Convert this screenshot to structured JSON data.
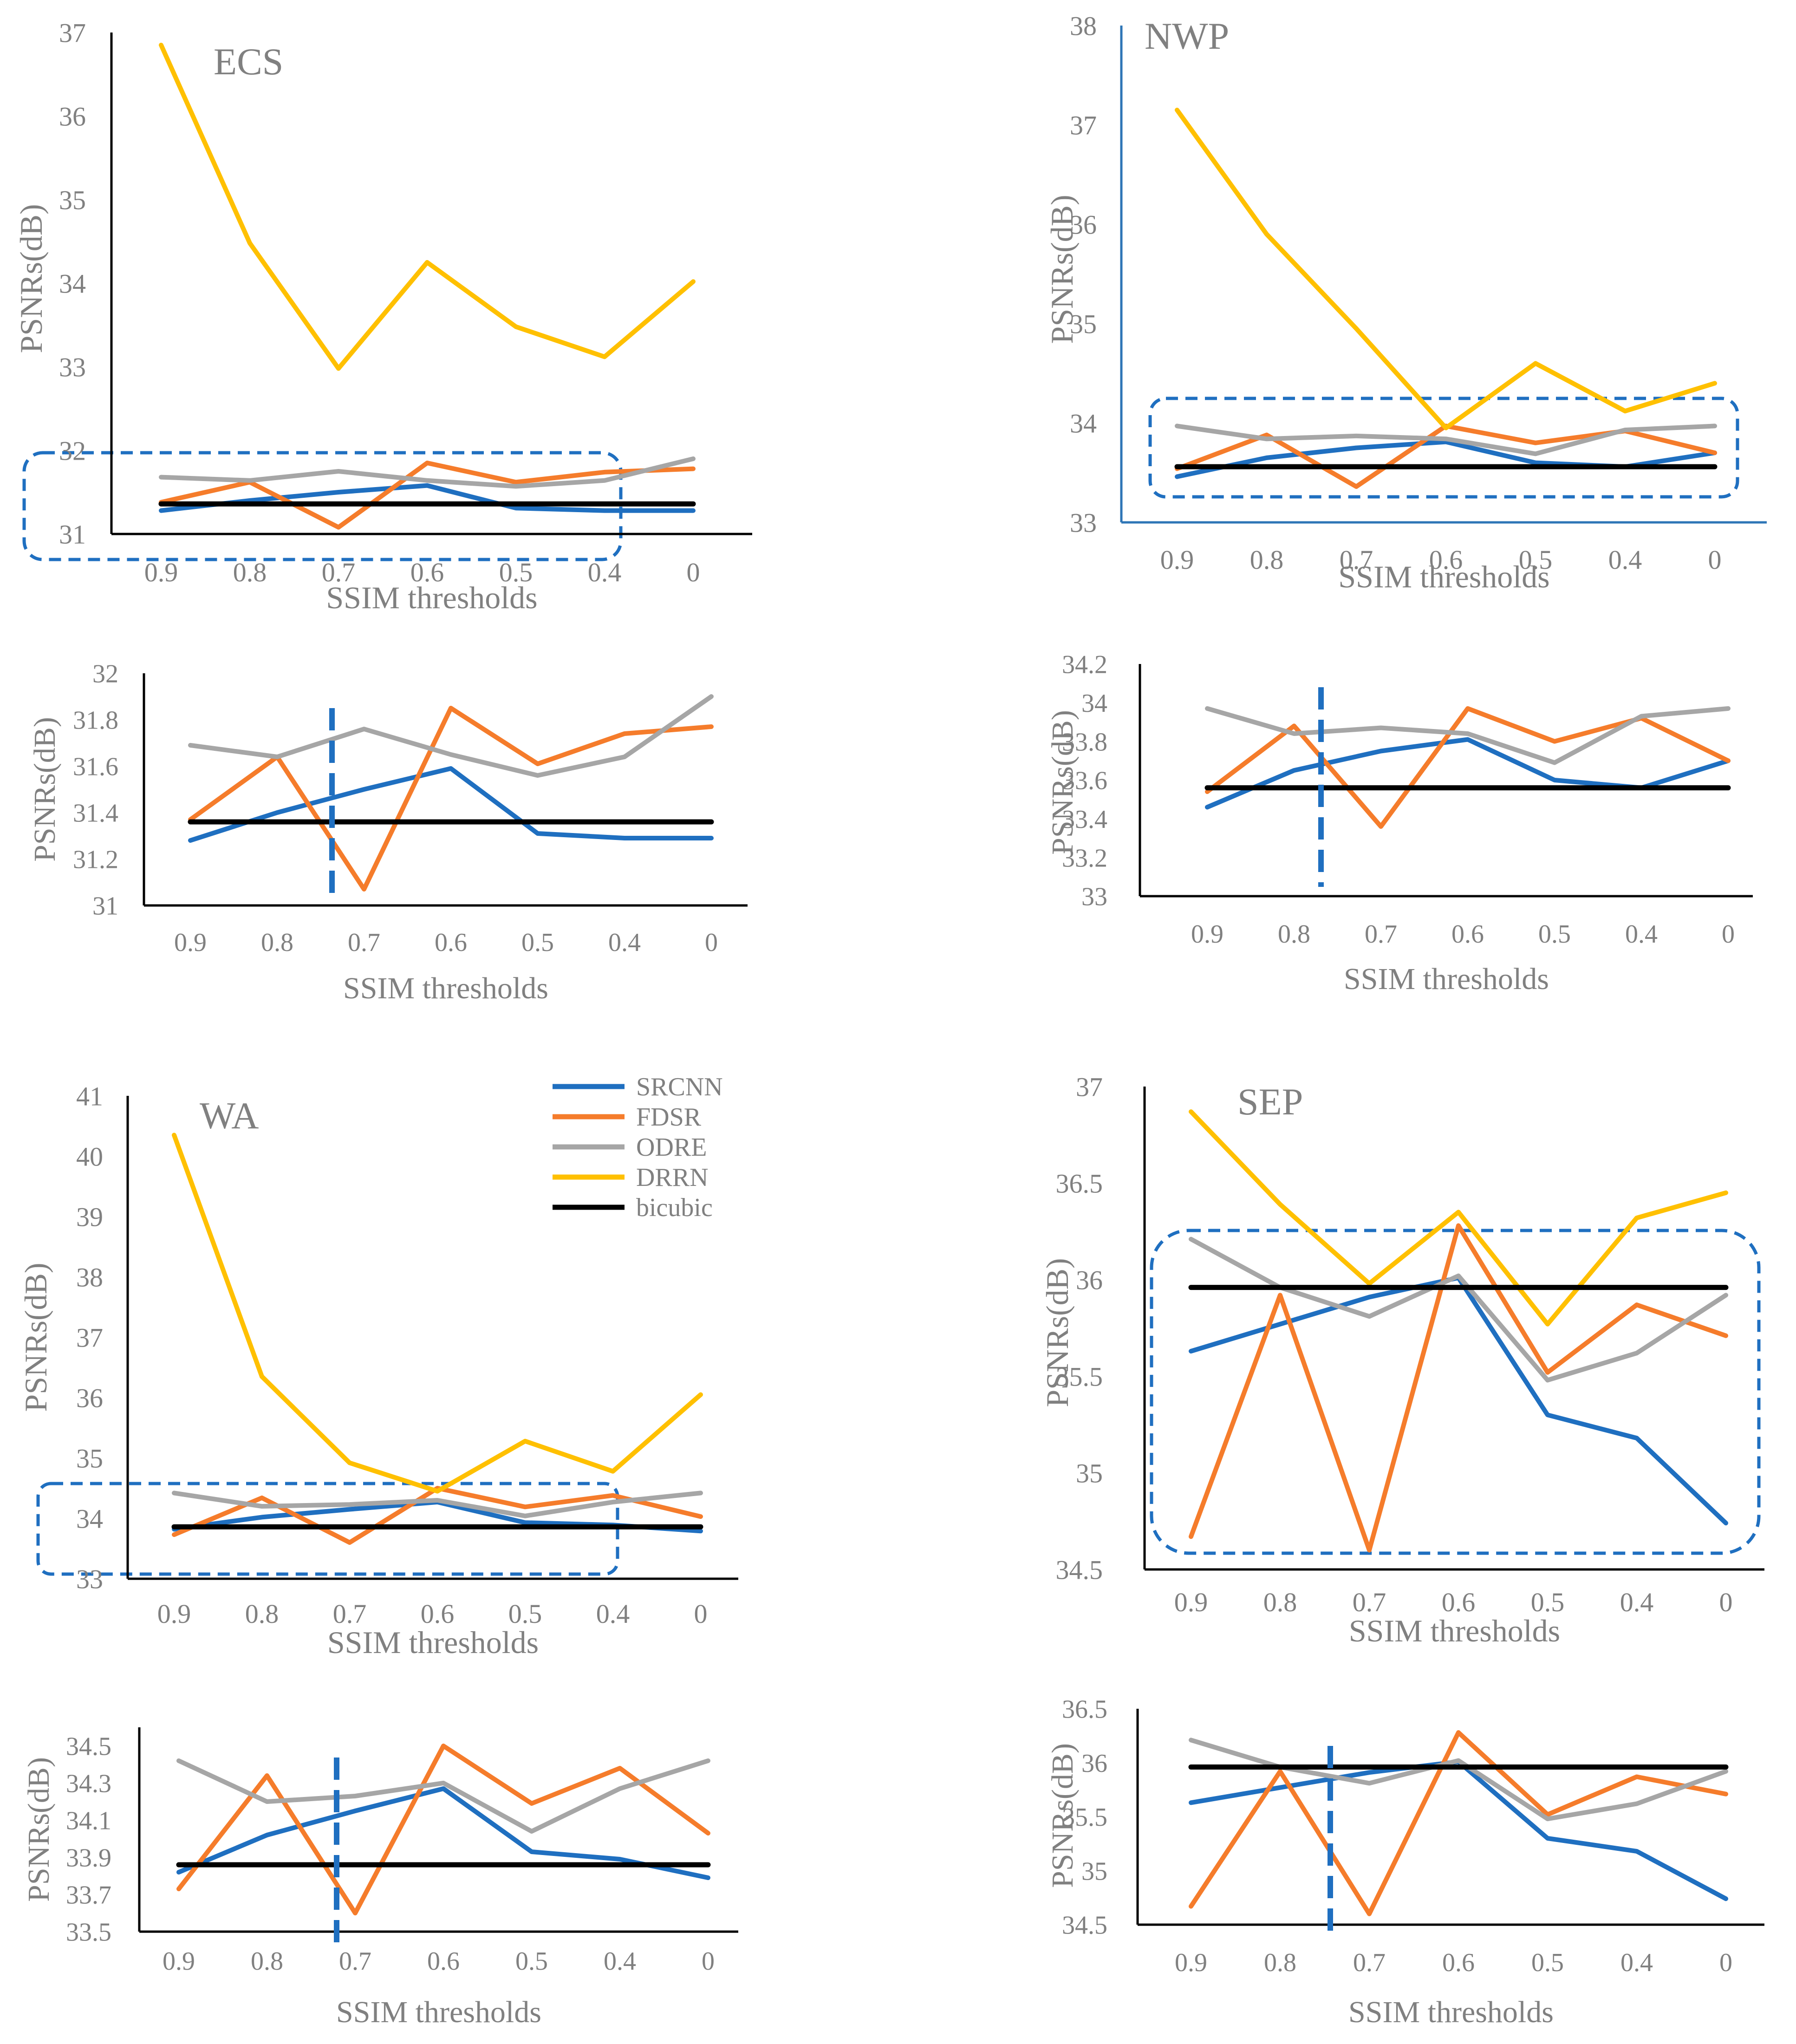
{
  "colors": {
    "SRCNN": "#1f6fc0",
    "FDSR": "#f57c2b",
    "ODRE": "#a6a6a6",
    "DRRN": "#ffc000",
    "bicubic": "#000000",
    "text": "#808080",
    "axis": "#000000",
    "axis_nwp": "#2e75b6",
    "marker": "#1f6fc0"
  },
  "legend": {
    "items": [
      {
        "name": "SRCNN",
        "color": "#1f6fc0"
      },
      {
        "name": "FDSR",
        "color": "#f57c2b"
      },
      {
        "name": "ODRE",
        "color": "#a6a6a6"
      },
      {
        "name": "DRRN",
        "color": "#ffc000"
      },
      {
        "name": "bicubic",
        "color": "#000000"
      }
    ]
  },
  "chart_data": [
    {
      "id": "ecs-main",
      "type": "line",
      "title": "ECS",
      "xlabel": "SSIM thresholds",
      "ylabel": "PSNRs(dB)",
      "categories": [
        "0.9",
        "0.8",
        "0.7",
        "0.6",
        "0.5",
        "0.4",
        "0"
      ],
      "ylim": [
        31,
        37
      ],
      "yticks": [
        "31",
        "32",
        "33",
        "34",
        "35",
        "36",
        "37"
      ],
      "series": [
        {
          "name": "SRCNN",
          "values": [
            31.28,
            31.4,
            31.5,
            31.58,
            31.31,
            31.28,
            31.28
          ]
        },
        {
          "name": "FDSR",
          "values": [
            31.38,
            31.62,
            31.08,
            31.85,
            31.62,
            31.74,
            31.78
          ]
        },
        {
          "name": "ODRE",
          "values": [
            31.68,
            31.64,
            31.75,
            31.64,
            31.57,
            31.64,
            31.9
          ]
        },
        {
          "name": "DRRN",
          "values": [
            36.85,
            34.48,
            32.98,
            34.25,
            33.48,
            33.12,
            34.02
          ]
        },
        {
          "name": "bicubic",
          "values": [
            31.36,
            31.36,
            31.36,
            31.36,
            31.36,
            31.36,
            31.36
          ]
        }
      ]
    },
    {
      "id": "ecs-zoom",
      "type": "line",
      "title": "",
      "xlabel": "SSIM thresholds",
      "ylabel": "PSNRs(dB)",
      "categories": [
        "0.9",
        "0.8",
        "0.7",
        "0.6",
        "0.5",
        "0.4",
        "0"
      ],
      "ylim": [
        31,
        32
      ],
      "yticks": [
        "31",
        "31.2",
        "31.4",
        "31.6",
        "31.8",
        "32"
      ],
      "series": [
        {
          "name": "SRCNN",
          "values": [
            31.28,
            31.4,
            31.5,
            31.59,
            31.31,
            31.29,
            31.29
          ]
        },
        {
          "name": "FDSR",
          "values": [
            31.37,
            31.64,
            31.07,
            31.85,
            31.61,
            31.74,
            31.77
          ]
        },
        {
          "name": "ODRE",
          "values": [
            31.69,
            31.64,
            31.76,
            31.65,
            31.56,
            31.64,
            31.9
          ]
        },
        {
          "name": "bicubic",
          "values": [
            31.36,
            31.36,
            31.36,
            31.36,
            31.36,
            31.36,
            31.36
          ]
        }
      ]
    },
    {
      "id": "nwp-main",
      "type": "line",
      "title": "NWP",
      "xlabel": "SSIM thresholds",
      "ylabel": "PSNRs(dB)",
      "categories": [
        "0.9",
        "0.8",
        "0.7",
        "0.6",
        "0.5",
        "0.4",
        "0"
      ],
      "ylim": [
        33,
        38
      ],
      "yticks": [
        "33",
        "34",
        "35",
        "36",
        "37",
        "38"
      ],
      "series": [
        {
          "name": "SRCNN",
          "values": [
            33.46,
            33.65,
            33.75,
            33.81,
            33.6,
            33.56,
            33.7
          ]
        },
        {
          "name": "FDSR",
          "values": [
            33.54,
            33.88,
            33.36,
            33.97,
            33.8,
            33.92,
            33.7
          ]
        },
        {
          "name": "ODRE",
          "values": [
            33.97,
            33.84,
            33.87,
            33.84,
            33.69,
            33.93,
            33.97
          ]
        },
        {
          "name": "DRRN",
          "values": [
            37.15,
            35.9,
            34.95,
            33.95,
            34.6,
            34.12,
            34.4
          ]
        },
        {
          "name": "bicubic",
          "values": [
            33.56,
            33.56,
            33.56,
            33.56,
            33.56,
            33.56,
            33.56
          ]
        }
      ]
    },
    {
      "id": "nwp-zoom",
      "type": "line",
      "title": "",
      "xlabel": "SSIM thresholds",
      "ylabel": "PSNRs(dB)",
      "categories": [
        "0.9",
        "0.8",
        "0.7",
        "0.6",
        "0.5",
        "0.4",
        "0"
      ],
      "ylim": [
        33,
        34.2
      ],
      "yticks": [
        "33",
        "33.2",
        "33.4",
        "33.6",
        "33.8",
        "34",
        "34.2"
      ],
      "series": [
        {
          "name": "SRCNN",
          "values": [
            33.46,
            33.65,
            33.75,
            33.81,
            33.6,
            33.56,
            33.7
          ]
        },
        {
          "name": "FDSR",
          "values": [
            33.54,
            33.88,
            33.36,
            33.97,
            33.8,
            33.92,
            33.7
          ]
        },
        {
          "name": "ODRE",
          "values": [
            33.97,
            33.84,
            33.87,
            33.84,
            33.69,
            33.93,
            33.97
          ]
        },
        {
          "name": "bicubic",
          "values": [
            33.56,
            33.56,
            33.56,
            33.56,
            33.56,
            33.56,
            33.56
          ]
        }
      ]
    },
    {
      "id": "wa-main",
      "type": "line",
      "title": "WA",
      "xlabel": "SSIM thresholds",
      "ylabel": "PSNRs(dB)",
      "categories": [
        "0.9",
        "0.8",
        "0.7",
        "0.6",
        "0.5",
        "0.4",
        "0"
      ],
      "ylim": [
        33,
        41
      ],
      "yticks": [
        "33",
        "34",
        "35",
        "36",
        "37",
        "38",
        "39",
        "40",
        "41"
      ],
      "series": [
        {
          "name": "SRCNN",
          "values": [
            33.82,
            34.02,
            34.15,
            34.27,
            33.93,
            33.89,
            33.79
          ]
        },
        {
          "name": "FDSR",
          "values": [
            33.73,
            34.34,
            33.6,
            34.5,
            34.19,
            34.38,
            34.03
          ]
        },
        {
          "name": "ODRE",
          "values": [
            34.42,
            34.2,
            34.23,
            34.3,
            34.04,
            34.27,
            34.42
          ]
        },
        {
          "name": "DRRN",
          "values": [
            40.35,
            36.35,
            34.92,
            34.45,
            35.28,
            34.78,
            36.05
          ]
        },
        {
          "name": "bicubic",
          "values": [
            33.86,
            33.86,
            33.86,
            33.86,
            33.86,
            33.86,
            33.86
          ]
        }
      ]
    },
    {
      "id": "wa-zoom",
      "type": "line",
      "title": "",
      "xlabel": "SSIM thresholds",
      "ylabel": "PSNRs(dB)",
      "categories": [
        "0.9",
        "0.8",
        "0.7",
        "0.6",
        "0.5",
        "0.4",
        "0"
      ],
      "ylim": [
        33.5,
        34.6
      ],
      "yticks": [
        "33.5",
        "33.7",
        "33.9",
        "34.1",
        "34.3",
        "34.5"
      ],
      "series": [
        {
          "name": "SRCNN",
          "values": [
            33.82,
            34.02,
            34.15,
            34.27,
            33.93,
            33.89,
            33.79
          ]
        },
        {
          "name": "FDSR",
          "values": [
            33.73,
            34.34,
            33.6,
            34.5,
            34.19,
            34.38,
            34.03
          ]
        },
        {
          "name": "ODRE",
          "values": [
            34.42,
            34.2,
            34.23,
            34.3,
            34.04,
            34.27,
            34.42
          ]
        },
        {
          "name": "bicubic",
          "values": [
            33.86,
            33.86,
            33.86,
            33.86,
            33.86,
            33.86,
            33.86
          ]
        }
      ]
    },
    {
      "id": "sep-main",
      "type": "line",
      "title": "SEP",
      "xlabel": "SSIM thresholds",
      "ylabel": "PSNRs(dB)",
      "categories": [
        "0.9",
        "0.8",
        "0.7",
        "0.6",
        "0.5",
        "0.4",
        "0"
      ],
      "ylim": [
        34.5,
        37
      ],
      "yticks": [
        "34.5",
        "35",
        "35.5",
        "36",
        "36.5",
        "37"
      ],
      "series": [
        {
          "name": "SRCNN",
          "values": [
            35.63,
            35.77,
            35.91,
            36.01,
            35.3,
            35.18,
            34.74
          ]
        },
        {
          "name": "FDSR",
          "values": [
            34.67,
            35.92,
            34.6,
            36.28,
            35.52,
            35.87,
            35.71
          ]
        },
        {
          "name": "ODRE",
          "values": [
            36.21,
            35.96,
            35.81,
            36.02,
            35.48,
            35.62,
            35.92
          ]
        },
        {
          "name": "DRRN",
          "values": [
            36.87,
            36.39,
            35.98,
            36.35,
            35.77,
            36.32,
            36.45
          ]
        },
        {
          "name": "bicubic",
          "values": [
            35.96,
            35.96,
            35.96,
            35.96,
            35.96,
            35.96,
            35.96
          ]
        }
      ]
    },
    {
      "id": "sep-zoom",
      "type": "line",
      "title": "",
      "xlabel": "SSIM thresholds",
      "ylabel": "PSNRs(dB)",
      "categories": [
        "0.9",
        "0.8",
        "0.7",
        "0.6",
        "0.5",
        "0.4",
        "0"
      ],
      "ylim": [
        34.5,
        36.5
      ],
      "yticks": [
        "34.5",
        "35",
        "35.5",
        "36",
        "36.5"
      ],
      "series": [
        {
          "name": "SRCNN",
          "values": [
            35.63,
            35.77,
            35.91,
            36.01,
            35.3,
            35.18,
            34.74
          ]
        },
        {
          "name": "FDSR",
          "values": [
            34.67,
            35.92,
            34.6,
            36.28,
            35.52,
            35.87,
            35.71
          ]
        },
        {
          "name": "ODRE",
          "values": [
            36.21,
            35.96,
            35.81,
            36.02,
            35.48,
            35.62,
            35.92
          ]
        },
        {
          "name": "bicubic",
          "values": [
            35.96,
            35.96,
            35.96,
            35.96,
            35.96,
            35.96,
            35.96
          ]
        }
      ]
    }
  ]
}
